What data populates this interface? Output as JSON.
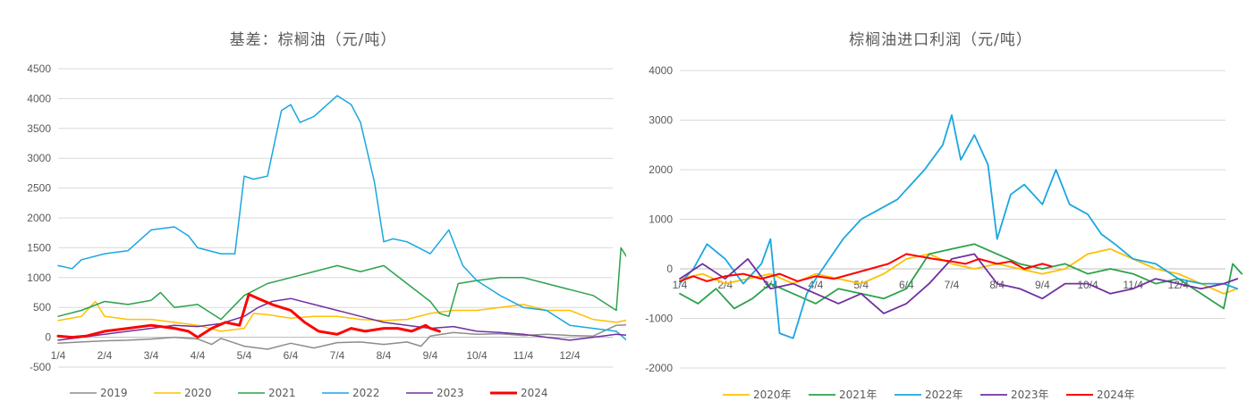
{
  "chart_data": [
    {
      "type": "line",
      "title": "基差：棕榈油（元/吨）",
      "ylim": [
        -500,
        4500
      ],
      "yticks": [
        -500,
        0,
        500,
        1000,
        1500,
        2000,
        2500,
        3000,
        3500,
        4000,
        4500
      ],
      "x_tick_labels": [
        "1/4",
        "2/4",
        "3/4",
        "4/4",
        "5/4",
        "6/4",
        "7/4",
        "8/4",
        "9/4",
        "10/4",
        "11/4",
        "12/4"
      ],
      "xlim": [
        0,
        12
      ],
      "grid": true,
      "legend_position": "bottom",
      "series": [
        {
          "name": "2019",
          "color": "#8c8c8c",
          "width": 1.5,
          "x": [
            0,
            0.5,
            1,
            1.5,
            2,
            2.5,
            3,
            3.3,
            3.5,
            4,
            4.5,
            5,
            5.5,
            6,
            6.5,
            7,
            7.5,
            7.8,
            8,
            8.5,
            9,
            9.5,
            10,
            10.5,
            11,
            11.5,
            12,
            12.3
          ],
          "y": [
            -100,
            -80,
            -60,
            -50,
            -30,
            0,
            -30,
            -120,
            -20,
            -150,
            -200,
            -100,
            -180,
            -90,
            -80,
            -120,
            -80,
            -150,
            20,
            80,
            50,
            60,
            30,
            50,
            30,
            20,
            200,
            210
          ]
        },
        {
          "name": "2020",
          "color": "#ffc000",
          "width": 1.5,
          "x": [
            0,
            0.5,
            0.8,
            1,
            1.5,
            2,
            2.5,
            3,
            3.5,
            4,
            4.2,
            4.5,
            5,
            5.5,
            6,
            6.5,
            7,
            7.5,
            8,
            8.5,
            9,
            9.5,
            10,
            10.5,
            11,
            11.5,
            12,
            12.3
          ],
          "y": [
            280,
            350,
            600,
            350,
            300,
            300,
            250,
            200,
            100,
            150,
            400,
            380,
            320,
            350,
            350,
            300,
            280,
            300,
            400,
            450,
            450,
            500,
            550,
            450,
            450,
            300,
            250,
            300
          ]
        },
        {
          "name": "2021",
          "color": "#2ca24c",
          "width": 1.5,
          "x": [
            0,
            0.5,
            1,
            1.5,
            2,
            2.2,
            2.5,
            3,
            3.5,
            4,
            4.5,
            5,
            5.5,
            6,
            6.5,
            7,
            7.5,
            8,
            8.2,
            8.4,
            8.6,
            9,
            9.5,
            10,
            10.5,
            11,
            11.5,
            12,
            12.1,
            12.3
          ],
          "y": [
            350,
            450,
            600,
            550,
            620,
            750,
            500,
            550,
            300,
            700,
            900,
            1000,
            1100,
            1200,
            1100,
            1200,
            900,
            600,
            400,
            350,
            900,
            950,
            1000,
            1000,
            900,
            800,
            700,
            450,
            1500,
            1250
          ]
        },
        {
          "name": "2022",
          "color": "#1aa7e0",
          "width": 1.5,
          "x": [
            0,
            0.3,
            0.5,
            1,
            1.5,
            2,
            2.5,
            2.8,
            3,
            3.5,
            3.8,
            4,
            4.2,
            4.5,
            4.8,
            5,
            5.2,
            5.5,
            6,
            6.3,
            6.5,
            6.8,
            7,
            7.2,
            7.5,
            8,
            8.4,
            8.7,
            9,
            9.5,
            10,
            10.5,
            11,
            11.5,
            12,
            12.3
          ],
          "y": [
            1200,
            1150,
            1300,
            1400,
            1450,
            1800,
            1850,
            1700,
            1500,
            1400,
            1400,
            2700,
            2650,
            2700,
            3800,
            3900,
            3600,
            3700,
            4050,
            3900,
            3600,
            2600,
            1600,
            1650,
            1600,
            1400,
            1800,
            1200,
            950,
            700,
            500,
            450,
            200,
            150,
            100,
            -100
          ]
        },
        {
          "name": "2023",
          "color": "#7030a0",
          "width": 1.5,
          "x": [
            0,
            0.5,
            1,
            1.5,
            2,
            2.5,
            3,
            3.5,
            4,
            4.3,
            4.6,
            5,
            5.5,
            6,
            6.5,
            7,
            7.5,
            8,
            8.5,
            9,
            9.5,
            10,
            10.5,
            11,
            11.5,
            12,
            12.3
          ],
          "y": [
            -50,
            0,
            50,
            100,
            150,
            200,
            180,
            230,
            350,
            500,
            600,
            650,
            550,
            450,
            350,
            250,
            200,
            150,
            180,
            100,
            80,
            50,
            0,
            -50,
            0,
            50,
            30
          ]
        },
        {
          "name": "2024",
          "color": "#ff0000",
          "width": 3,
          "x": [
            0,
            0.3,
            0.6,
            1,
            1.5,
            2,
            2.5,
            2.8,
            3,
            3.3,
            3.6,
            3.9,
            4.1,
            4.3,
            4.6,
            5,
            5.3,
            5.6,
            6,
            6.3,
            6.6,
            7,
            7.3,
            7.6,
            7.9,
            8,
            8.2
          ],
          "y": [
            20,
            0,
            20,
            100,
            150,
            200,
            150,
            100,
            0,
            150,
            250,
            200,
            720,
            650,
            550,
            450,
            250,
            100,
            50,
            150,
            100,
            150,
            150,
            100,
            200,
            150,
            100
          ]
        }
      ]
    },
    {
      "type": "line",
      "title": "棕榈油进口利润（元/吨）",
      "ylim": [
        -2000,
        4000
      ],
      "yticks": [
        -2000,
        -1000,
        0,
        1000,
        2000,
        3000,
        4000
      ],
      "x_tick_labels": [
        "1/4",
        "2/4",
        "3/4",
        "4/4",
        "5/4",
        "6/4",
        "7/4",
        "8/4",
        "9/4",
        "10/4",
        "11/4",
        "12/4"
      ],
      "xlim": [
        0,
        12
      ],
      "grid": true,
      "legend_position": "bottom",
      "series": [
        {
          "name": "2020年",
          "color": "#ffc000",
          "width": 1.8,
          "x": [
            0,
            0.5,
            1,
            1.5,
            2,
            2.5,
            3,
            3.5,
            4,
            4.5,
            5,
            5.5,
            6,
            6.5,
            7,
            7.5,
            8,
            8.5,
            9,
            9.5,
            10,
            10.5,
            11,
            11.5,
            12,
            12.3
          ],
          "y": [
            -200,
            -100,
            -300,
            -200,
            -100,
            -300,
            -100,
            -200,
            -300,
            -100,
            200,
            300,
            100,
            0,
            100,
            0,
            -100,
            0,
            300,
            400,
            200,
            0,
            -100,
            -300,
            -500,
            -400
          ]
        },
        {
          "name": "2021年",
          "color": "#2ca24c",
          "width": 1.8,
          "x": [
            0,
            0.4,
            0.8,
            1.2,
            1.6,
            2,
            2.5,
            3,
            3.5,
            4,
            4.5,
            5,
            5.5,
            6,
            6.5,
            7,
            7.5,
            8,
            8.5,
            9,
            9.5,
            10,
            10.5,
            11,
            11.5,
            12,
            12.2,
            12.4
          ],
          "y": [
            -500,
            -700,
            -400,
            -800,
            -600,
            -300,
            -500,
            -700,
            -400,
            -500,
            -600,
            -400,
            300,
            400,
            500,
            300,
            100,
            0,
            100,
            -100,
            0,
            -100,
            -300,
            -200,
            -500,
            -800,
            100,
            -100
          ]
        },
        {
          "name": "2022年",
          "color": "#1aa7e0",
          "width": 1.8,
          "x": [
            0,
            0.3,
            0.6,
            1,
            1.4,
            1.8,
            2,
            2.2,
            2.5,
            2.8,
            3,
            3.3,
            3.6,
            4,
            4.4,
            4.8,
            5,
            5.4,
            5.8,
            6,
            6.2,
            6.5,
            6.8,
            7,
            7.3,
            7.6,
            8,
            8.3,
            8.6,
            9,
            9.3,
            9.6,
            10,
            10.5,
            11,
            11.5,
            12,
            12.3
          ],
          "y": [
            -300,
            0,
            500,
            200,
            -300,
            100,
            600,
            -1300,
            -1400,
            -500,
            -200,
            200,
            600,
            1000,
            1200,
            1400,
            1600,
            2000,
            2500,
            3100,
            2200,
            2700,
            2100,
            600,
            1500,
            1700,
            1300,
            2000,
            1300,
            1100,
            700,
            500,
            200,
            100,
            -200,
            -300,
            -300,
            -400
          ]
        },
        {
          "name": "2023年",
          "color": "#7030a0",
          "width": 1.8,
          "x": [
            0,
            0.5,
            1,
            1.5,
            2,
            2.5,
            3,
            3.5,
            4,
            4.5,
            5,
            5.5,
            6,
            6.5,
            7,
            7.5,
            8,
            8.5,
            9,
            9.5,
            10,
            10.5,
            11,
            11.5,
            12,
            12.3
          ],
          "y": [
            -200,
            100,
            -200,
            200,
            -400,
            -300,
            -500,
            -700,
            -500,
            -900,
            -700,
            -300,
            200,
            300,
            -300,
            -400,
            -600,
            -300,
            -300,
            -500,
            -400,
            -200,
            -300,
            -400,
            -300,
            -200
          ]
        },
        {
          "name": "2024年",
          "color": "#ff0000",
          "width": 2,
          "x": [
            0,
            0.3,
            0.6,
            1,
            1.4,
            1.8,
            2.2,
            2.6,
            3,
            3.4,
            3.8,
            4.2,
            4.6,
            5,
            5.3,
            5.6,
            6,
            6.3,
            6.6,
            7,
            7.3,
            7.6,
            8,
            8.2
          ],
          "y": [
            -250,
            -150,
            -250,
            -150,
            -100,
            -200,
            -100,
            -250,
            -150,
            -200,
            -100,
            0,
            100,
            300,
            250,
            200,
            150,
            100,
            200,
            100,
            150,
            0,
            100,
            50
          ]
        }
      ]
    }
  ]
}
